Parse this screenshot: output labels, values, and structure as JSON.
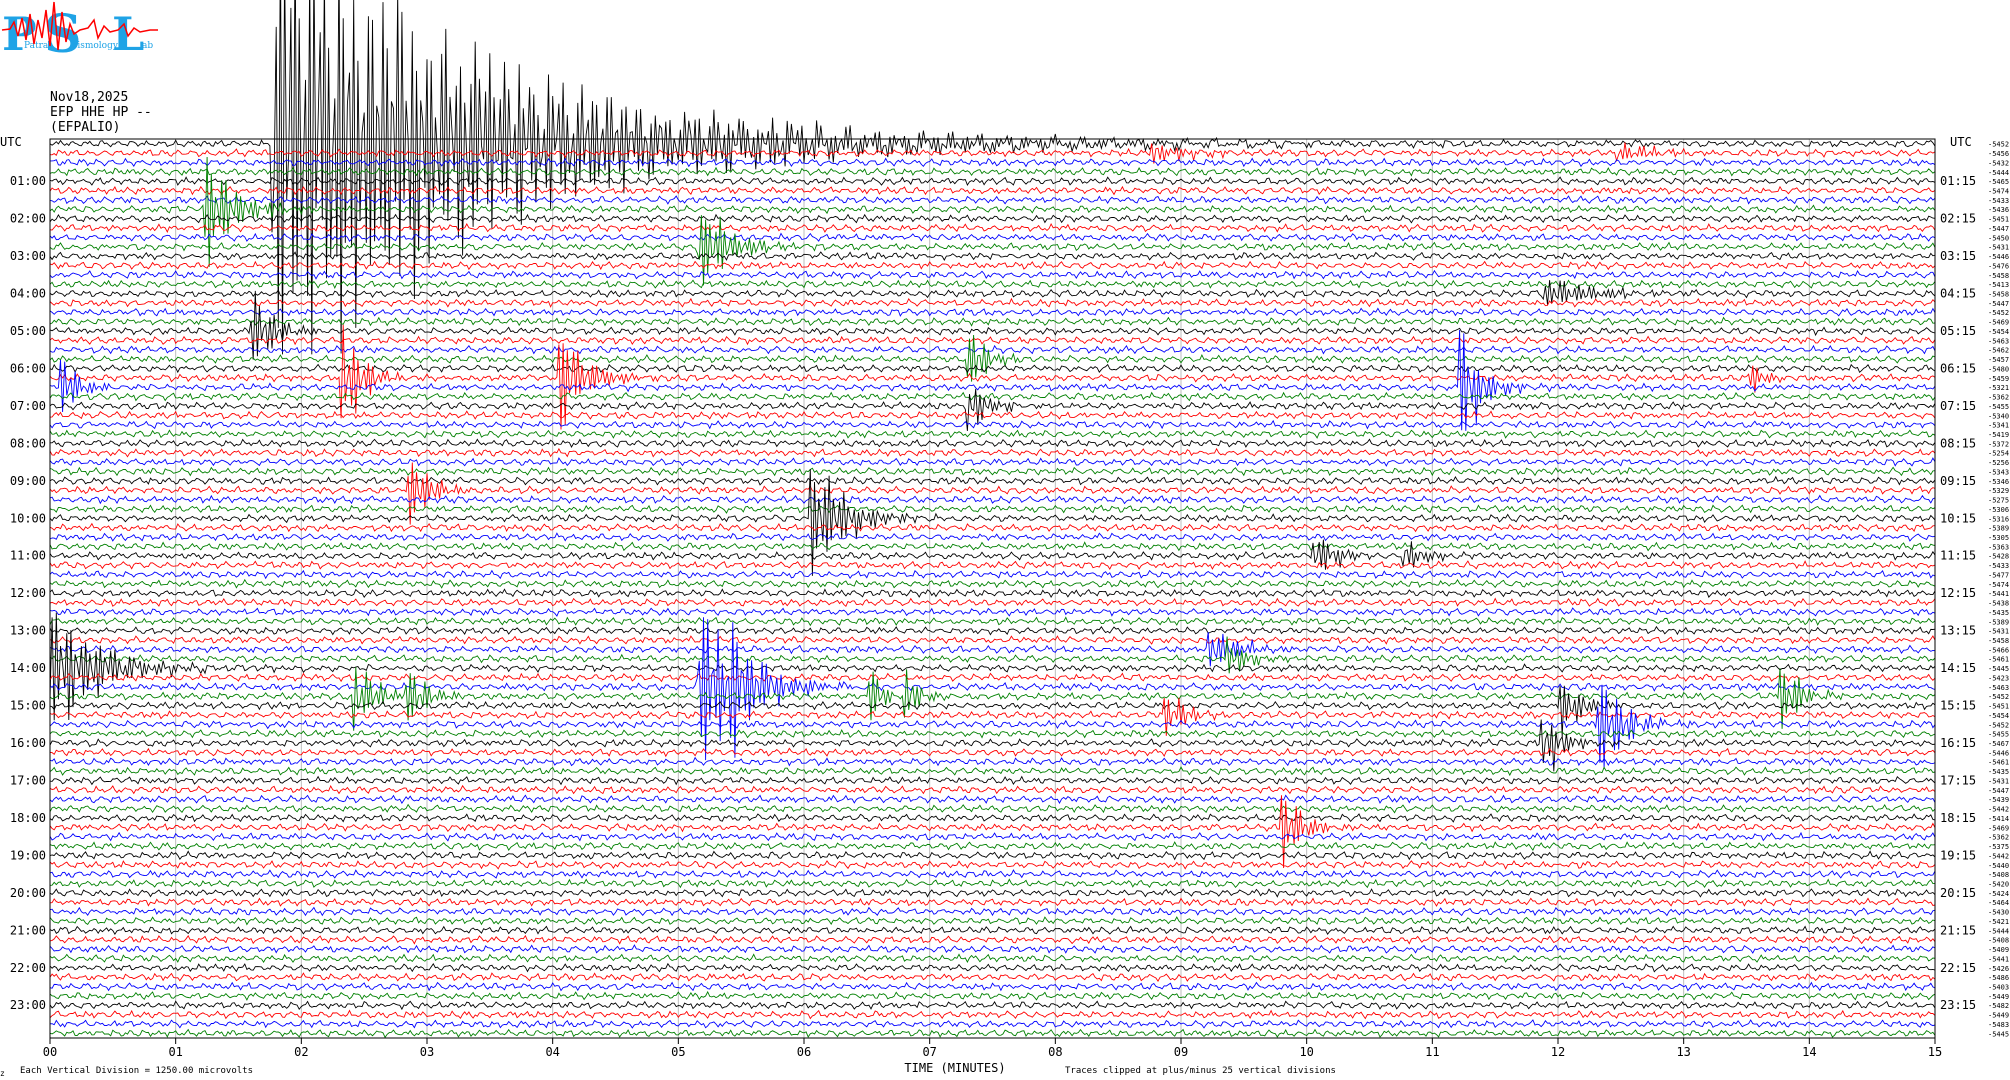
{
  "logo": {
    "letters": [
      "P",
      "S",
      "L"
    ],
    "small_words": [
      "Patras",
      "eismology",
      "ab"
    ],
    "colors": {
      "letters": "#1fa3e6",
      "trace": "#ff0000"
    }
  },
  "header": {
    "date": "Nov18,2025",
    "channel": "EFP HHE HP --",
    "station": "(EFPALIO)"
  },
  "chart_data": {
    "type": "line",
    "plot_kind": "helicorder",
    "utc_label_left": "UTC",
    "utc_label_right": "UTC",
    "hour_labels_left": [
      "01:00",
      "02:00",
      "03:00",
      "04:00",
      "05:00",
      "06:00",
      "07:00",
      "08:00",
      "09:00",
      "10:00",
      "11:00",
      "12:00",
      "13:00",
      "14:00",
      "15:00",
      "16:00",
      "17:00",
      "18:00",
      "19:00",
      "20:00",
      "21:00",
      "22:00",
      "23:00"
    ],
    "hour_labels_right": [
      "01:15",
      "02:15",
      "03:15",
      "04:15",
      "05:15",
      "06:15",
      "07:15",
      "08:15",
      "09:15",
      "10:15",
      "11:15",
      "12:15",
      "13:15",
      "14:15",
      "15:15",
      "16:15",
      "17:15",
      "18:15",
      "19:15",
      "20:15",
      "21:15",
      "22:15",
      "23:15"
    ],
    "x_ticks": [
      "00",
      "01",
      "02",
      "03",
      "04",
      "05",
      "06",
      "07",
      "08",
      "09",
      "10",
      "11",
      "12",
      "13",
      "14",
      "15"
    ],
    "xlim": [
      0,
      15
    ],
    "xlabel": "TIME (MINUTES)",
    "trace_minutes": 15,
    "trace_count": 96,
    "trace_colors": [
      "#000000",
      "#ff0000",
      "#0000ff",
      "#008000"
    ],
    "offsets": [
      "-5452",
      "-5456",
      "-5432",
      "-5444",
      "-5465",
      "-5474",
      "-5433",
      "-5436",
      "-5451",
      "-5447",
      "-5450",
      "-5431",
      "-5446",
      "-5476",
      "-5458",
      "-5413",
      "-5458",
      "-5447",
      "-5452",
      "-5469",
      "-5454",
      "-5463",
      "-5462",
      "-5457",
      "-5480",
      "-5459",
      "-5321",
      "-5362",
      "-5455",
      "-5340",
      "-5341",
      "-5419",
      "-5372",
      "-5254",
      "-5256",
      "-5343",
      "-5346",
      "-5329",
      "-5275",
      "-5306",
      "-5316",
      "-5389",
      "-5305",
      "-5363",
      "-5428",
      "-5433",
      "-5477",
      "-5474",
      "-5441",
      "-5438",
      "-5435",
      "-5389",
      "-5431",
      "-5458",
      "-5466",
      "-5461",
      "-5445",
      "-5423",
      "-5463",
      "-5452",
      "-5451",
      "-5454",
      "-5452",
      "-5455",
      "-5467",
      "-5446",
      "-5461",
      "-5435",
      "-5431",
      "-5447",
      "-5439",
      "-5442",
      "-5414",
      "-5469",
      "-5362",
      "-5375",
      "-5442",
      "-5440",
      "-5408",
      "-5420",
      "-5424",
      "-5464",
      "-5430",
      "-5421",
      "-5444",
      "-5408",
      "-5409",
      "-5441",
      "-5426",
      "-5486",
      "-5403",
      "-5449",
      "-5482",
      "-5449",
      "-5483",
      "-5445"
    ],
    "events": [
      {
        "trace": 0,
        "minute": 1.8,
        "amp": 30,
        "decay": 1.6,
        "tail": true
      },
      {
        "trace": 1,
        "minute": 8.8,
        "amp": 1.5,
        "decay": 0.3
      },
      {
        "trace": 1,
        "minute": 12.5,
        "amp": 1.5,
        "decay": 0.25
      },
      {
        "trace": 7,
        "minute": 1.25,
        "amp": 6,
        "decay": 0.25
      },
      {
        "trace": 11,
        "minute": 5.2,
        "amp": 5,
        "decay": 0.25
      },
      {
        "trace": 16,
        "minute": 11.9,
        "amp": 2,
        "decay": 0.4
      },
      {
        "trace": 20,
        "minute": 1.65,
        "amp": 5,
        "decay": 0.15
      },
      {
        "trace": 23,
        "minute": 7.35,
        "amp": 3,
        "decay": 0.15
      },
      {
        "trace": 25,
        "minute": 2.35,
        "amp": 7,
        "decay": 0.15
      },
      {
        "trace": 25,
        "minute": 4.1,
        "amp": 6,
        "decay": 0.2
      },
      {
        "trace": 25,
        "minute": 13.55,
        "amp": 2,
        "decay": 0.1
      },
      {
        "trace": 26,
        "minute": 0.12,
        "amp": 3,
        "decay": 0.15
      },
      {
        "trace": 26,
        "minute": 11.25,
        "amp": 8,
        "decay": 0.15
      },
      {
        "trace": 28,
        "minute": 7.35,
        "amp": 3,
        "decay": 0.15
      },
      {
        "trace": 37,
        "minute": 2.9,
        "amp": 4,
        "decay": 0.15
      },
      {
        "trace": 40,
        "minute": 6.1,
        "amp": 7,
        "decay": 0.25
      },
      {
        "trace": 44,
        "minute": 10.1,
        "amp": 3,
        "decay": 0.15
      },
      {
        "trace": 44,
        "minute": 10.8,
        "amp": 2,
        "decay": 0.15
      },
      {
        "trace": 54,
        "minute": 9.25,
        "amp": 3,
        "decay": 0.2
      },
      {
        "trace": 55,
        "minute": 9.4,
        "amp": 2.5,
        "decay": 0.15
      },
      {
        "trace": 56,
        "minute": 0.05,
        "amp": 8,
        "decay": 0.35,
        "tail": true
      },
      {
        "trace": 58,
        "minute": 5.2,
        "amp": 9,
        "decay": 0.3,
        "tail": true
      },
      {
        "trace": 58,
        "minute": 5.45,
        "amp": 4,
        "decay": 0.2
      },
      {
        "trace": 59,
        "minute": 2.45,
        "amp": 4,
        "decay": 0.15
      },
      {
        "trace": 59,
        "minute": 2.85,
        "amp": 4,
        "decay": 0.15
      },
      {
        "trace": 59,
        "minute": 6.55,
        "amp": 3,
        "decay": 0.1
      },
      {
        "trace": 59,
        "minute": 6.85,
        "amp": 3,
        "decay": 0.1
      },
      {
        "trace": 59,
        "minute": 13.8,
        "amp": 4,
        "decay": 0.15
      },
      {
        "trace": 60,
        "minute": 12.05,
        "amp": 4,
        "decay": 0.15
      },
      {
        "trace": 61,
        "minute": 8.9,
        "amp": 3,
        "decay": 0.15
      },
      {
        "trace": 62,
        "minute": 12.35,
        "amp": 6,
        "decay": 0.2
      },
      {
        "trace": 64,
        "minute": 11.9,
        "amp": 4,
        "decay": 0.15
      },
      {
        "trace": 73,
        "minute": 9.85,
        "amp": 4,
        "decay": 0.15
      }
    ],
    "noise_level": 0.35,
    "trace_spacing_label": "Each Vertical Division = 1250.00 microvolts",
    "clip_note": "Traces clipped at plus/minus 25 vertical divisions"
  },
  "footer": {
    "corner_mark": "z"
  }
}
